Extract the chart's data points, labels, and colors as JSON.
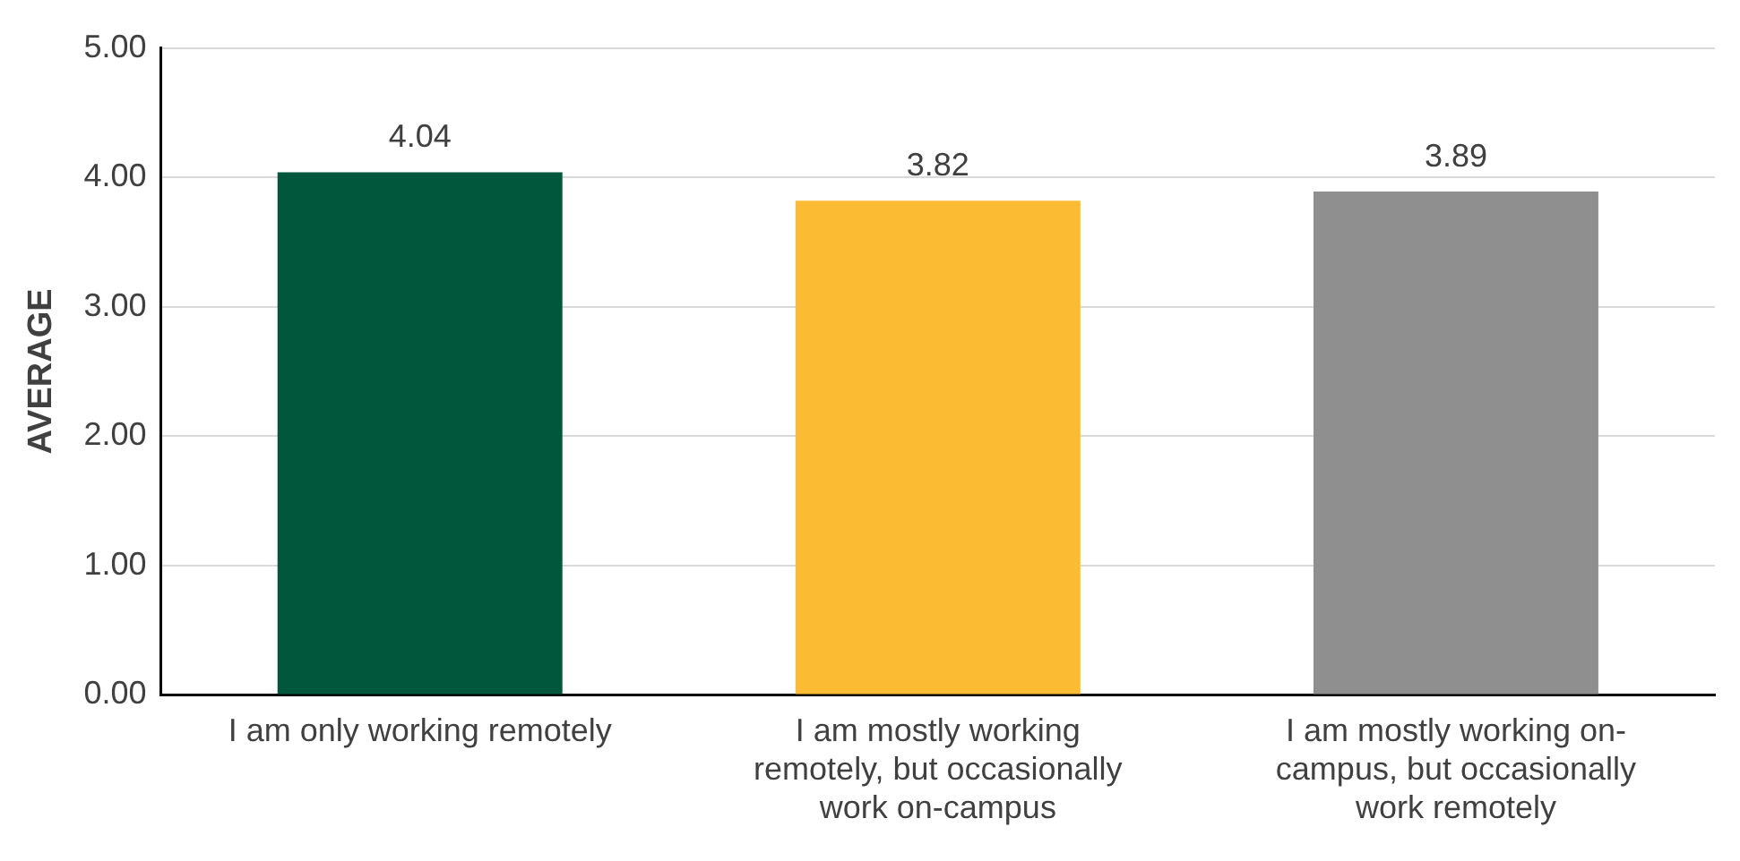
{
  "chart_data": {
    "type": "bar",
    "ylabel": "AVERAGE",
    "categories": [
      "I am only working remotely",
      "I am mostly working remotely, but occasionally work on-campus",
      "I am mostly working on-campus, but occasionally work remotely"
    ],
    "values": [
      4.04,
      3.82,
      3.89
    ],
    "colors": [
      "#00573c",
      "#fbbc33",
      "#8f8f8f"
    ],
    "ylim": [
      0,
      5
    ],
    "yticks": [
      {
        "value": 0,
        "label": "0.00"
      },
      {
        "value": 1,
        "label": "1.00"
      },
      {
        "value": 2,
        "label": "2.00"
      },
      {
        "value": 3,
        "label": "3.00"
      },
      {
        "value": 4,
        "label": "4.00"
      },
      {
        "value": 5,
        "label": "5.00"
      }
    ],
    "grid": "y",
    "data_labels": true,
    "legend": false
  }
}
